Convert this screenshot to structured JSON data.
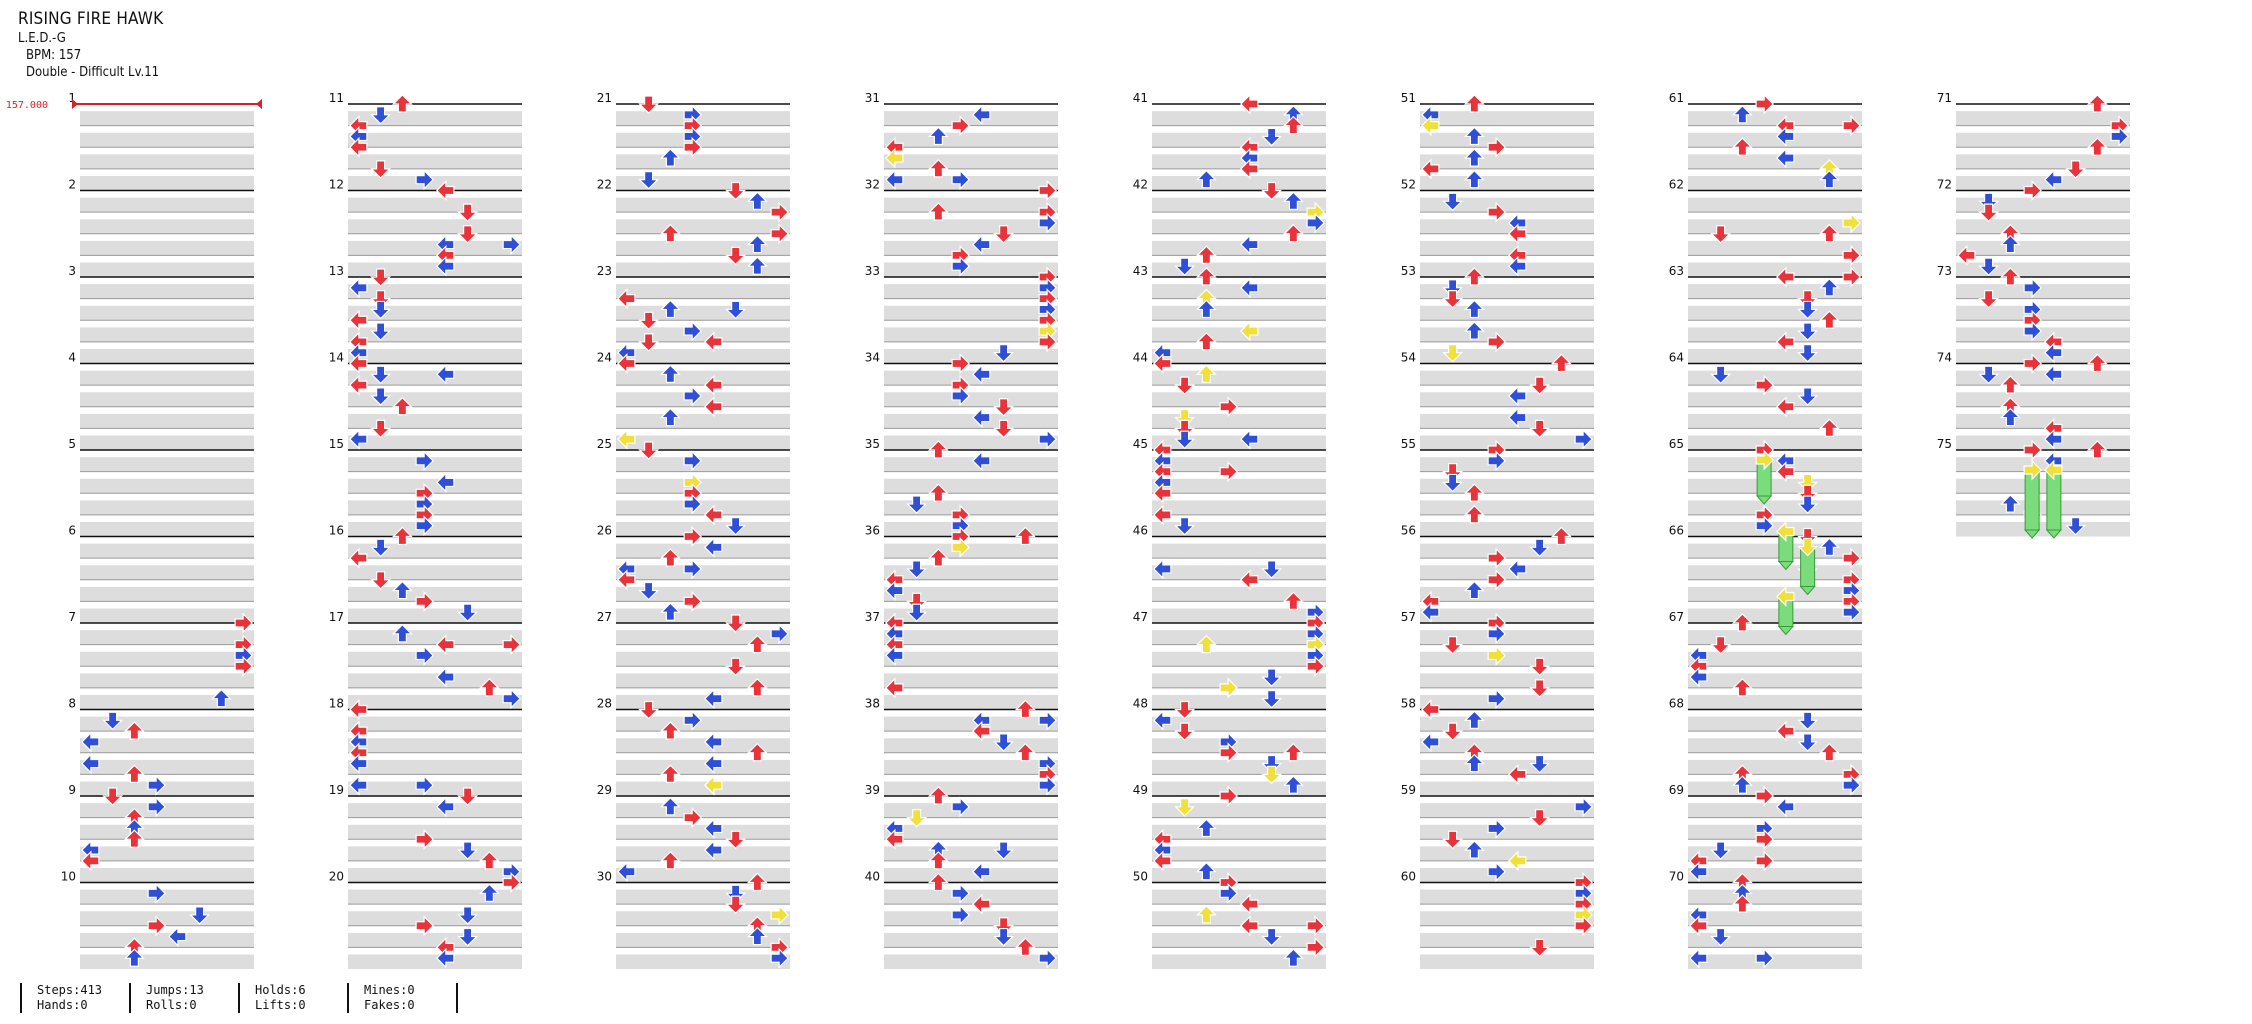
{
  "song": {
    "title": "RISING FIRE HAWK",
    "artist": "L.E.D.-G",
    "bpm_text": "BPM: 157",
    "difficulty_text": "Double - Difficult  Lv.11"
  },
  "bpm_marker": "157.000",
  "measure_numbers": [
    1,
    2,
    3,
    4,
    5,
    6,
    7,
    8,
    9,
    10,
    11,
    12,
    13,
    14,
    15,
    16,
    17,
    18,
    19,
    20,
    21,
    22,
    23,
    24,
    25,
    26,
    27,
    28,
    29,
    30,
    31,
    32,
    33,
    34,
    35,
    36,
    37,
    38,
    39,
    40,
    41,
    42,
    43,
    44,
    45,
    46,
    47,
    48,
    49,
    50,
    51,
    52,
    53,
    54,
    55,
    56,
    57,
    58,
    59,
    60,
    61,
    62,
    63,
    64,
    65,
    66,
    67,
    68,
    69,
    70,
    71,
    72,
    73,
    74,
    75
  ],
  "stats": [
    {
      "top": "Steps:413",
      "bottom": "Hands:0"
    },
    {
      "top": "Jumps:13",
      "bottom": "Rolls:0"
    },
    {
      "top": "Holds:6",
      "bottom": "Lifts:0"
    },
    {
      "top": "Mines:0",
      "bottom": "Fakes:0"
    }
  ],
  "colors": {
    "quarter_note": "#e8333a",
    "eighth_note": "#2e4fd6",
    "sixteenth_note": "#f1e03a",
    "hold_body": "#7bdc7b",
    "bpm_line": "#d9202a",
    "beat_band": "#dddddd"
  },
  "arrow_shapes": [
    "left-arrow",
    "down-arrow",
    "up-arrow",
    "right-arrow"
  ]
}
